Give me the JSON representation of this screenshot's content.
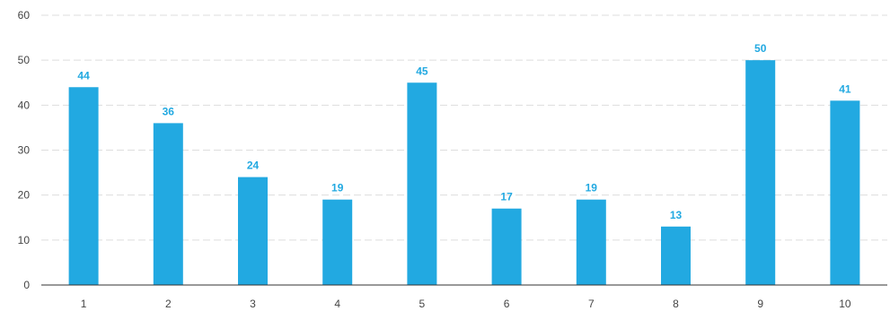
{
  "chart_data": {
    "type": "bar",
    "categories": [
      "1",
      "2",
      "3",
      "4",
      "5",
      "6",
      "7",
      "8",
      "9",
      "10"
    ],
    "values": [
      44,
      36,
      24,
      19,
      45,
      17,
      19,
      13,
      50,
      41
    ],
    "ylim": [
      0,
      60
    ],
    "yticks": [
      0,
      10,
      20,
      30,
      40,
      50,
      60
    ],
    "grid": true,
    "grid_style": "dashed-horizontal",
    "bar_color": "#22A9E1",
    "label_color": "#22A9E1",
    "axis_color": "#333333",
    "grid_color": "#DDDDDD",
    "data_labels": true
  }
}
